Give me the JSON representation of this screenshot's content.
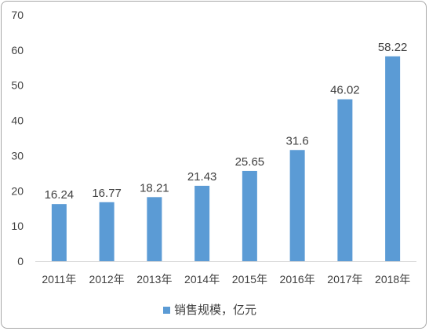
{
  "chart_data": {
    "type": "bar",
    "categories": [
      "2011年",
      "2012年",
      "2013年",
      "2014年",
      "2015年",
      "2016年",
      "2017年",
      "2018年"
    ],
    "series": [
      {
        "name": "销售规模，亿元",
        "values": [
          16.24,
          16.77,
          18.21,
          21.43,
          25.65,
          31.6,
          46.02,
          58.22
        ],
        "value_labels": [
          "16.24",
          "16.77",
          "18.21",
          "21.43",
          "25.65",
          "31.6",
          "46.02",
          "58.22"
        ]
      }
    ],
    "ylim": [
      0,
      70
    ],
    "yticks": [
      0,
      10,
      20,
      30,
      40,
      50,
      60,
      70
    ],
    "ytick_labels": [
      "0",
      "10",
      "20",
      "30",
      "40",
      "50",
      "60",
      "70"
    ],
    "grid": false,
    "legend_position": "bottom",
    "bar_color": "#5b9bd5",
    "axis_color": "#d9d9d9"
  }
}
